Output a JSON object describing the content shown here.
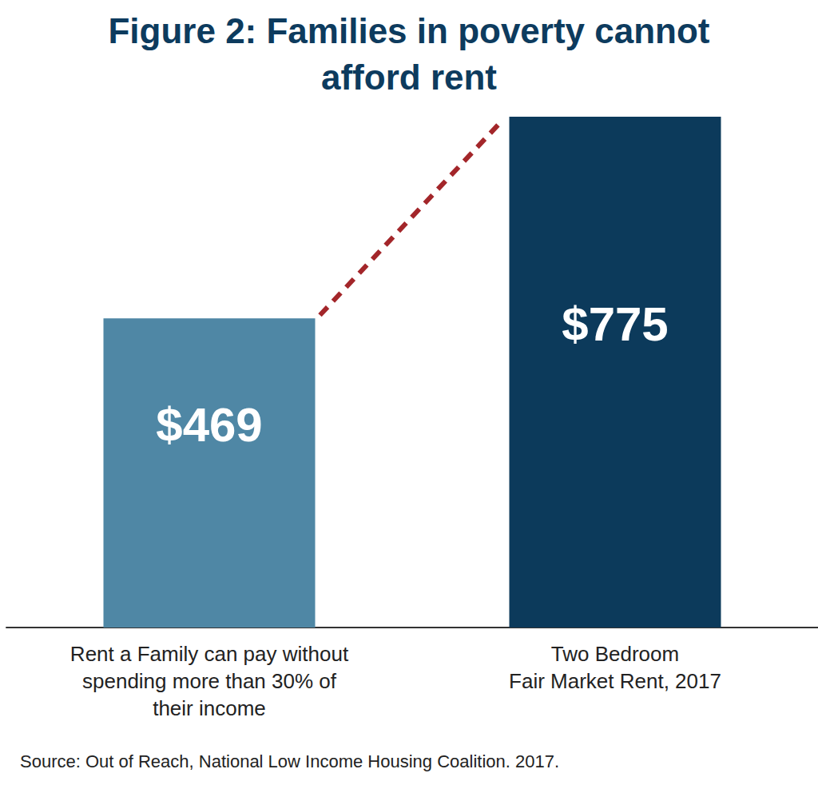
{
  "chart_data": {
    "type": "bar",
    "title": "Figure 2: Families in poverty cannot\nafford rent",
    "categories": [
      "Rent a Family can pay without\nspending more than 30% of\ntheir income",
      "Two Bedroom\nFair Market Rent, 2017"
    ],
    "values": [
      469,
      775
    ],
    "value_labels": [
      "$469",
      "$775"
    ],
    "colors": [
      "#4f87a5",
      "#0c3a5b"
    ],
    "ylim": [
      0,
      775
    ],
    "grid": false,
    "data_labels": true,
    "tick_labels": "x",
    "source": "Source: Out of Reach, National Low Income Housing Coalition. 2017."
  }
}
